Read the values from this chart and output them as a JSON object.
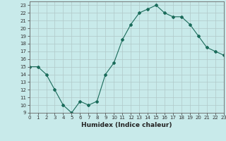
{
  "xlabel": "Humidex (Indice chaleur)",
  "ylabel": "",
  "x": [
    0,
    1,
    2,
    3,
    4,
    5,
    6,
    7,
    8,
    9,
    10,
    11,
    12,
    13,
    14,
    15,
    16,
    17,
    18,
    19,
    20,
    21,
    22,
    23
  ],
  "y": [
    15,
    15,
    14,
    12,
    10,
    9,
    10.5,
    10,
    10.5,
    14,
    15.5,
    18.5,
    20.5,
    22,
    22.5,
    23,
    22,
    21.5,
    21.5,
    20.5,
    19,
    17.5,
    17,
    16.5
  ],
  "line_color": "#1a6b5a",
  "bg_color": "#c8eaea",
  "grid_color": "#b0c8c8",
  "xlim": [
    0,
    23
  ],
  "ylim": [
    9,
    23.5
  ],
  "yticks": [
    9,
    10,
    11,
    12,
    13,
    14,
    15,
    16,
    17,
    18,
    19,
    20,
    21,
    22,
    23
  ],
  "xticks": [
    0,
    1,
    2,
    3,
    4,
    5,
    6,
    7,
    8,
    9,
    10,
    11,
    12,
    13,
    14,
    15,
    16,
    17,
    18,
    19,
    20,
    21,
    22,
    23
  ],
  "tick_fontsize": 5,
  "label_fontsize": 6.5,
  "marker": "D",
  "marker_size": 2.0,
  "linewidth": 0.8
}
